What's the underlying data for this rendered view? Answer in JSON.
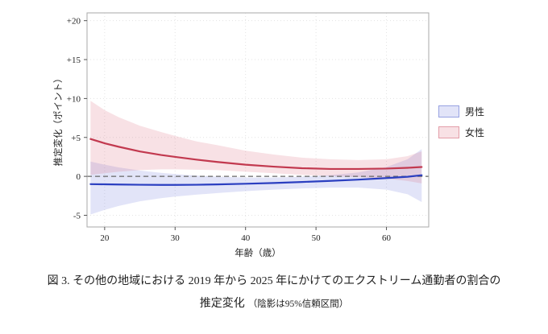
{
  "caption": {
    "line1": "図 3. その他の地域における 2019 年から 2025 年にかけてのエクストリーム通勤者の割合の",
    "line2_main": "推定変化",
    "line2_note": "（陰影は95%信頼区間）"
  },
  "chart_data": {
    "type": "line",
    "title": "",
    "xlabel": "年齢（歳）",
    "ylabel": "推定変化（ポイント）",
    "xlim": [
      17.5,
      66
    ],
    "ylim": [
      -6.5,
      21
    ],
    "x_ticks": [
      20,
      30,
      40,
      50,
      60
    ],
    "x_tick_labels": [
      "20",
      "30",
      "40",
      "50",
      "60"
    ],
    "y_ticks": [
      -5,
      0,
      5,
      10,
      15,
      20
    ],
    "y_tick_labels": [
      "-5",
      "0",
      "+5",
      "+10",
      "+15",
      "+20"
    ],
    "grid": true,
    "zero_line": {
      "y": 0,
      "style": "dashed",
      "color": "#666666"
    },
    "legend_position": "right",
    "x": [
      18,
      20,
      22,
      25,
      28,
      30,
      33,
      36,
      40,
      44,
      48,
      52,
      56,
      60,
      63,
      65
    ],
    "series": [
      {
        "name": "男性",
        "color": "#2b3fc0",
        "fill": "rgba(95,105,215,0.18)",
        "values": [
          -1.0,
          -1.02,
          -1.05,
          -1.08,
          -1.1,
          -1.1,
          -1.08,
          -1.03,
          -0.95,
          -0.85,
          -0.72,
          -0.58,
          -0.42,
          -0.22,
          -0.05,
          0.15
        ],
        "ci_upper": [
          1.9,
          1.5,
          1.15,
          0.75,
          0.45,
          0.3,
          0.1,
          -0.05,
          -0.15,
          -0.15,
          -0.05,
          0.15,
          0.5,
          1.2,
          2.2,
          3.5
        ],
        "ci_lower": [
          -4.9,
          -4.3,
          -3.8,
          -3.2,
          -2.8,
          -2.6,
          -2.35,
          -2.15,
          -1.9,
          -1.7,
          -1.55,
          -1.45,
          -1.45,
          -1.7,
          -2.3,
          -3.3
        ]
      },
      {
        "name": "女性",
        "color": "#c2394f",
        "fill": "rgba(220,105,125,0.20)",
        "values": [
          4.8,
          4.25,
          3.8,
          3.2,
          2.75,
          2.5,
          2.15,
          1.85,
          1.5,
          1.25,
          1.05,
          0.95,
          0.95,
          1.0,
          1.1,
          1.2
        ],
        "ci_upper": [
          9.7,
          8.5,
          7.6,
          6.5,
          5.7,
          5.2,
          4.5,
          4.0,
          3.3,
          2.8,
          2.4,
          2.2,
          2.1,
          2.2,
          2.6,
          3.2
        ],
        "ci_lower": [
          0.2,
          0.4,
          0.6,
          0.8,
          0.9,
          0.9,
          0.85,
          0.8,
          0.6,
          0.4,
          0.2,
          0.05,
          -0.1,
          -0.3,
          -0.6,
          -0.9
        ]
      }
    ]
  }
}
